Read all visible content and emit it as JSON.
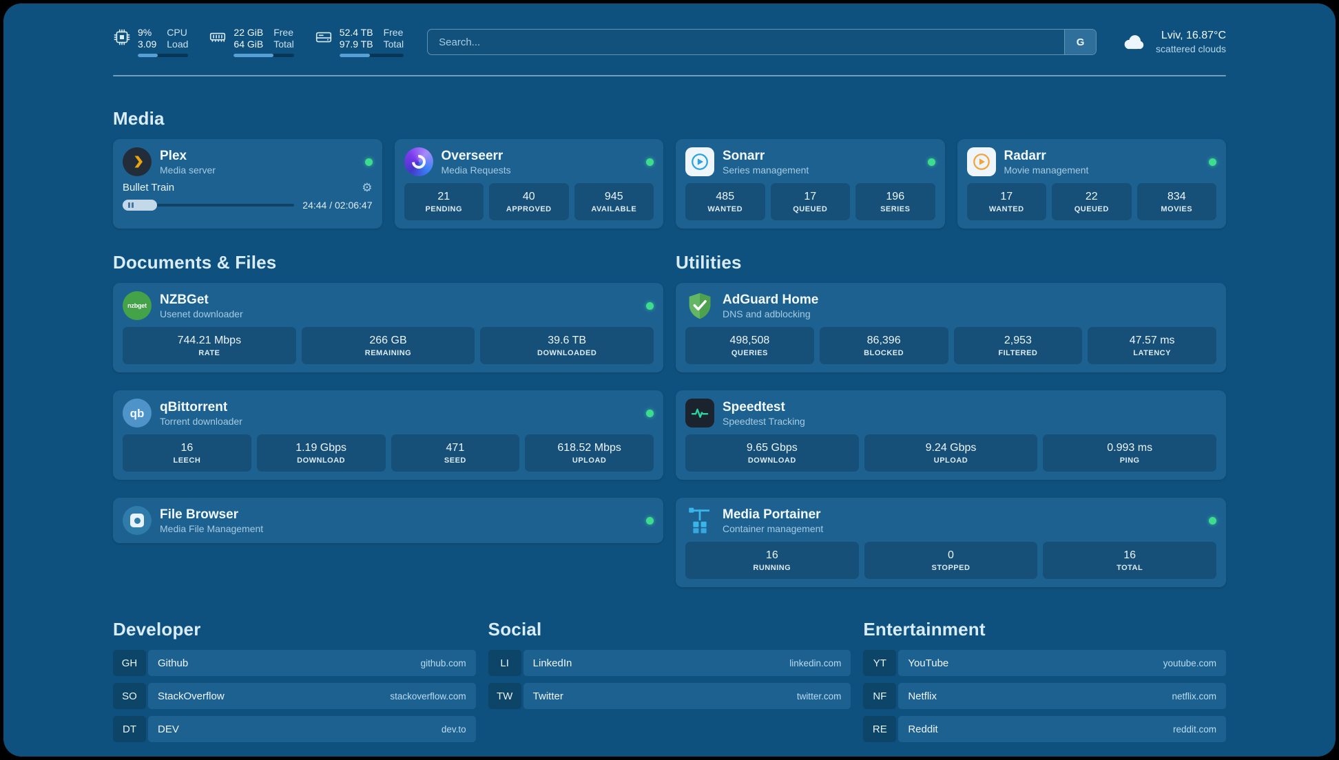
{
  "colors": {
    "background": "#0f517e",
    "card": "#1d6191",
    "tile": "#174f78",
    "status_online": "#3edc8e",
    "progress_fill": "#57a0d6",
    "heading": "#d8edf9"
  },
  "topbar": {
    "stats": [
      {
        "icon": "cpu-icon",
        "values": [
          "9%",
          "3.09"
        ],
        "labels": [
          "CPU",
          "Load"
        ],
        "progress_pct": 40
      },
      {
        "icon": "memory-icon",
        "values": [
          "22 GiB",
          "64 GiB"
        ],
        "labels": [
          "Free",
          "Total"
        ],
        "progress_pct": 66
      },
      {
        "icon": "disk-icon",
        "values": [
          "52.4 TB",
          "97.9 TB"
        ],
        "labels": [
          "Free",
          "Total"
        ],
        "progress_pct": 47
      }
    ],
    "search": {
      "placeholder": "Search...",
      "button_label": "G"
    },
    "weather": {
      "location": "Lviv, 16.87°C",
      "condition": "scattered clouds"
    }
  },
  "sections": {
    "media": {
      "title": "Media",
      "services": [
        {
          "name": "Plex",
          "subtitle": "Media server",
          "online": true,
          "player": {
            "title": "Bullet Train",
            "time": "24:44 / 02:06:47",
            "progress_pct": 20
          }
        },
        {
          "name": "Overseerr",
          "subtitle": "Media Requests",
          "online": true,
          "stats": [
            {
              "value": "21",
              "label": "PENDING"
            },
            {
              "value": "40",
              "label": "APPROVED"
            },
            {
              "value": "945",
              "label": "AVAILABLE"
            }
          ]
        },
        {
          "name": "Sonarr",
          "subtitle": "Series management",
          "online": true,
          "stats": [
            {
              "value": "485",
              "label": "WANTED"
            },
            {
              "value": "17",
              "label": "QUEUED"
            },
            {
              "value": "196",
              "label": "SERIES"
            }
          ]
        },
        {
          "name": "Radarr",
          "subtitle": "Movie management",
          "online": true,
          "stats": [
            {
              "value": "17",
              "label": "WANTED"
            },
            {
              "value": "22",
              "label": "QUEUED"
            },
            {
              "value": "834",
              "label": "MOVIES"
            }
          ]
        }
      ]
    },
    "documents": {
      "title": "Documents & Files",
      "services": [
        {
          "name": "NZBGet",
          "subtitle": "Usenet downloader",
          "online": true,
          "stats": [
            {
              "value": "744.21 Mbps",
              "label": "RATE"
            },
            {
              "value": "266 GB",
              "label": "REMAINING"
            },
            {
              "value": "39.6 TB",
              "label": "DOWNLOADED"
            }
          ]
        },
        {
          "name": "qBittorrent",
          "subtitle": "Torrent downloader",
          "online": true,
          "stats": [
            {
              "value": "16",
              "label": "LEECH"
            },
            {
              "value": "1.19 Gbps",
              "label": "DOWNLOAD"
            },
            {
              "value": "471",
              "label": "SEED"
            },
            {
              "value": "618.52 Mbps",
              "label": "UPLOAD"
            }
          ]
        },
        {
          "name": "File Browser",
          "subtitle": "Media File Management",
          "online": true
        }
      ]
    },
    "utilities": {
      "title": "Utilities",
      "services": [
        {
          "name": "AdGuard Home",
          "subtitle": "DNS and adblocking",
          "online": false,
          "stats": [
            {
              "value": "498,508",
              "label": "QUERIES"
            },
            {
              "value": "86,396",
              "label": "BLOCKED"
            },
            {
              "value": "2,953",
              "label": "FILTERED"
            },
            {
              "value": "47.57 ms",
              "label": "LATENCY"
            }
          ]
        },
        {
          "name": "Speedtest",
          "subtitle": "Speedtest Tracking",
          "online": false,
          "stats": [
            {
              "value": "9.65 Gbps",
              "label": "DOWNLOAD"
            },
            {
              "value": "9.24 Gbps",
              "label": "UPLOAD"
            },
            {
              "value": "0.993 ms",
              "label": "PING"
            }
          ]
        },
        {
          "name": "Media Portainer",
          "subtitle": "Container management",
          "online": true,
          "stats": [
            {
              "value": "16",
              "label": "RUNNING"
            },
            {
              "value": "0",
              "label": "STOPPED"
            },
            {
              "value": "16",
              "label": "TOTAL"
            }
          ]
        }
      ]
    }
  },
  "bookmarks": {
    "groups": [
      {
        "title": "Developer",
        "items": [
          {
            "abbr": "GH",
            "name": "Github",
            "domain": "github.com"
          },
          {
            "abbr": "SO",
            "name": "StackOverflow",
            "domain": "stackoverflow.com"
          },
          {
            "abbr": "DT",
            "name": "DEV",
            "domain": "dev.to"
          }
        ]
      },
      {
        "title": "Social",
        "items": [
          {
            "abbr": "LI",
            "name": "LinkedIn",
            "domain": "linkedin.com"
          },
          {
            "abbr": "TW",
            "name": "Twitter",
            "domain": "twitter.com"
          }
        ]
      },
      {
        "title": "Entertainment",
        "items": [
          {
            "abbr": "YT",
            "name": "YouTube",
            "domain": "youtube.com"
          },
          {
            "abbr": "NF",
            "name": "Netflix",
            "domain": "netflix.com"
          },
          {
            "abbr": "RE",
            "name": "Reddit",
            "domain": "reddit.com"
          }
        ]
      }
    ]
  }
}
